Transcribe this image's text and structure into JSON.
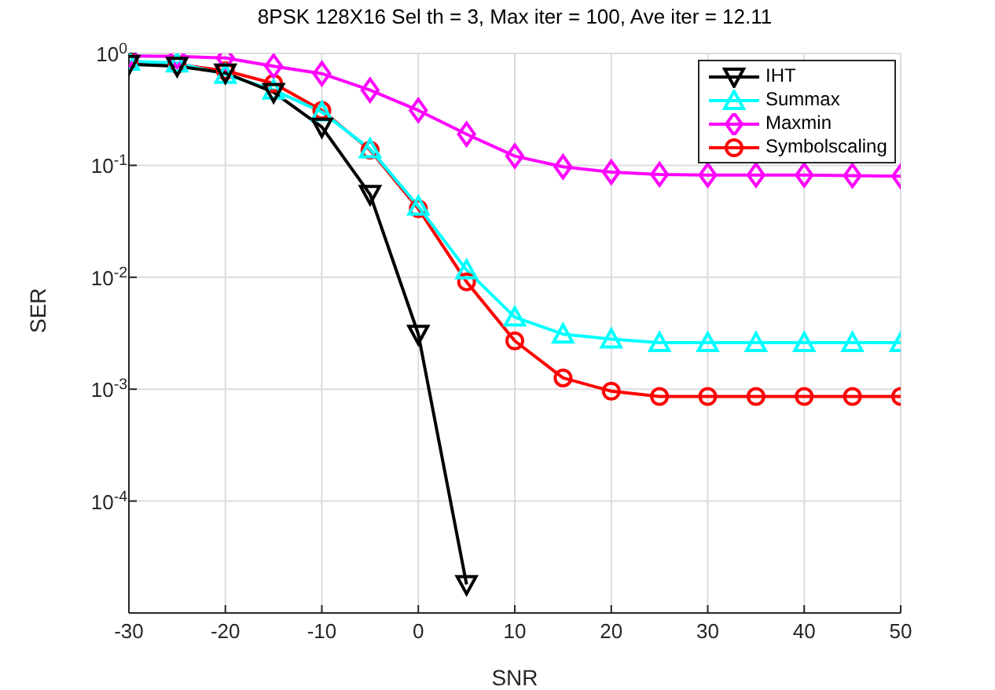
{
  "chart_data": {
    "type": "line",
    "title": "8PSK 128X16 Sel th = 3, Max iter = 100, Ave iter = 12.11",
    "xlabel": "SNR",
    "ylabel": "SER",
    "x": [
      -30,
      -25,
      -20,
      -15,
      -10,
      -5,
      0,
      5,
      10,
      15,
      20,
      25,
      30,
      35,
      40,
      45,
      50
    ],
    "series": [
      {
        "name": "IHT",
        "color": "#000000",
        "marker": "triangle-down",
        "values": [
          0.8,
          0.77,
          0.67,
          0.45,
          0.22,
          0.055,
          0.0031,
          1.8e-05,
          null,
          null,
          null,
          null,
          null,
          null,
          null,
          null,
          null
        ]
      },
      {
        "name": "Summax",
        "color": "#00ffff",
        "marker": "triangle",
        "values": [
          0.85,
          0.82,
          0.65,
          0.47,
          0.3,
          0.14,
          0.043,
          0.0116,
          0.0044,
          0.0031,
          0.0028,
          0.0026,
          0.0026,
          0.0026,
          0.0026,
          0.0026,
          0.0026
        ]
      },
      {
        "name": "Maxmin",
        "color": "#ff00ff",
        "marker": "diamond",
        "values": [
          0.95,
          0.94,
          0.91,
          0.77,
          0.66,
          0.47,
          0.31,
          0.19,
          0.121,
          0.097,
          0.087,
          0.083,
          0.082,
          0.082,
          0.082,
          0.081,
          0.08
        ]
      },
      {
        "name": "Symbolscaling",
        "color": "#ff0000",
        "marker": "circle",
        "values": [
          0.85,
          0.8,
          0.7,
          0.54,
          0.31,
          0.137,
          0.041,
          0.0091,
          0.0027,
          0.00126,
          0.00096,
          0.00086,
          0.00086,
          0.00086,
          0.00086,
          0.00086,
          0.00086
        ]
      }
    ],
    "xlim": [
      -30,
      50
    ],
    "xticks": [
      -30,
      -20,
      -10,
      0,
      10,
      20,
      30,
      40,
      50
    ],
    "ylim": [
      1e-05,
      1
    ],
    "yticks": [
      {
        "value": 1,
        "label": "10$^{0}$"
      },
      {
        "value": 0.1,
        "label": "10$^{-1}$"
      },
      {
        "value": 0.01,
        "label": "10$^{-2}$"
      },
      {
        "value": 0.001,
        "label": "10$^{-3}$"
      },
      {
        "value": 0.0001,
        "label": "10$^{-4}$"
      }
    ],
    "log": true,
    "grid": true,
    "legend": "top right",
    "line_style": "solid"
  }
}
